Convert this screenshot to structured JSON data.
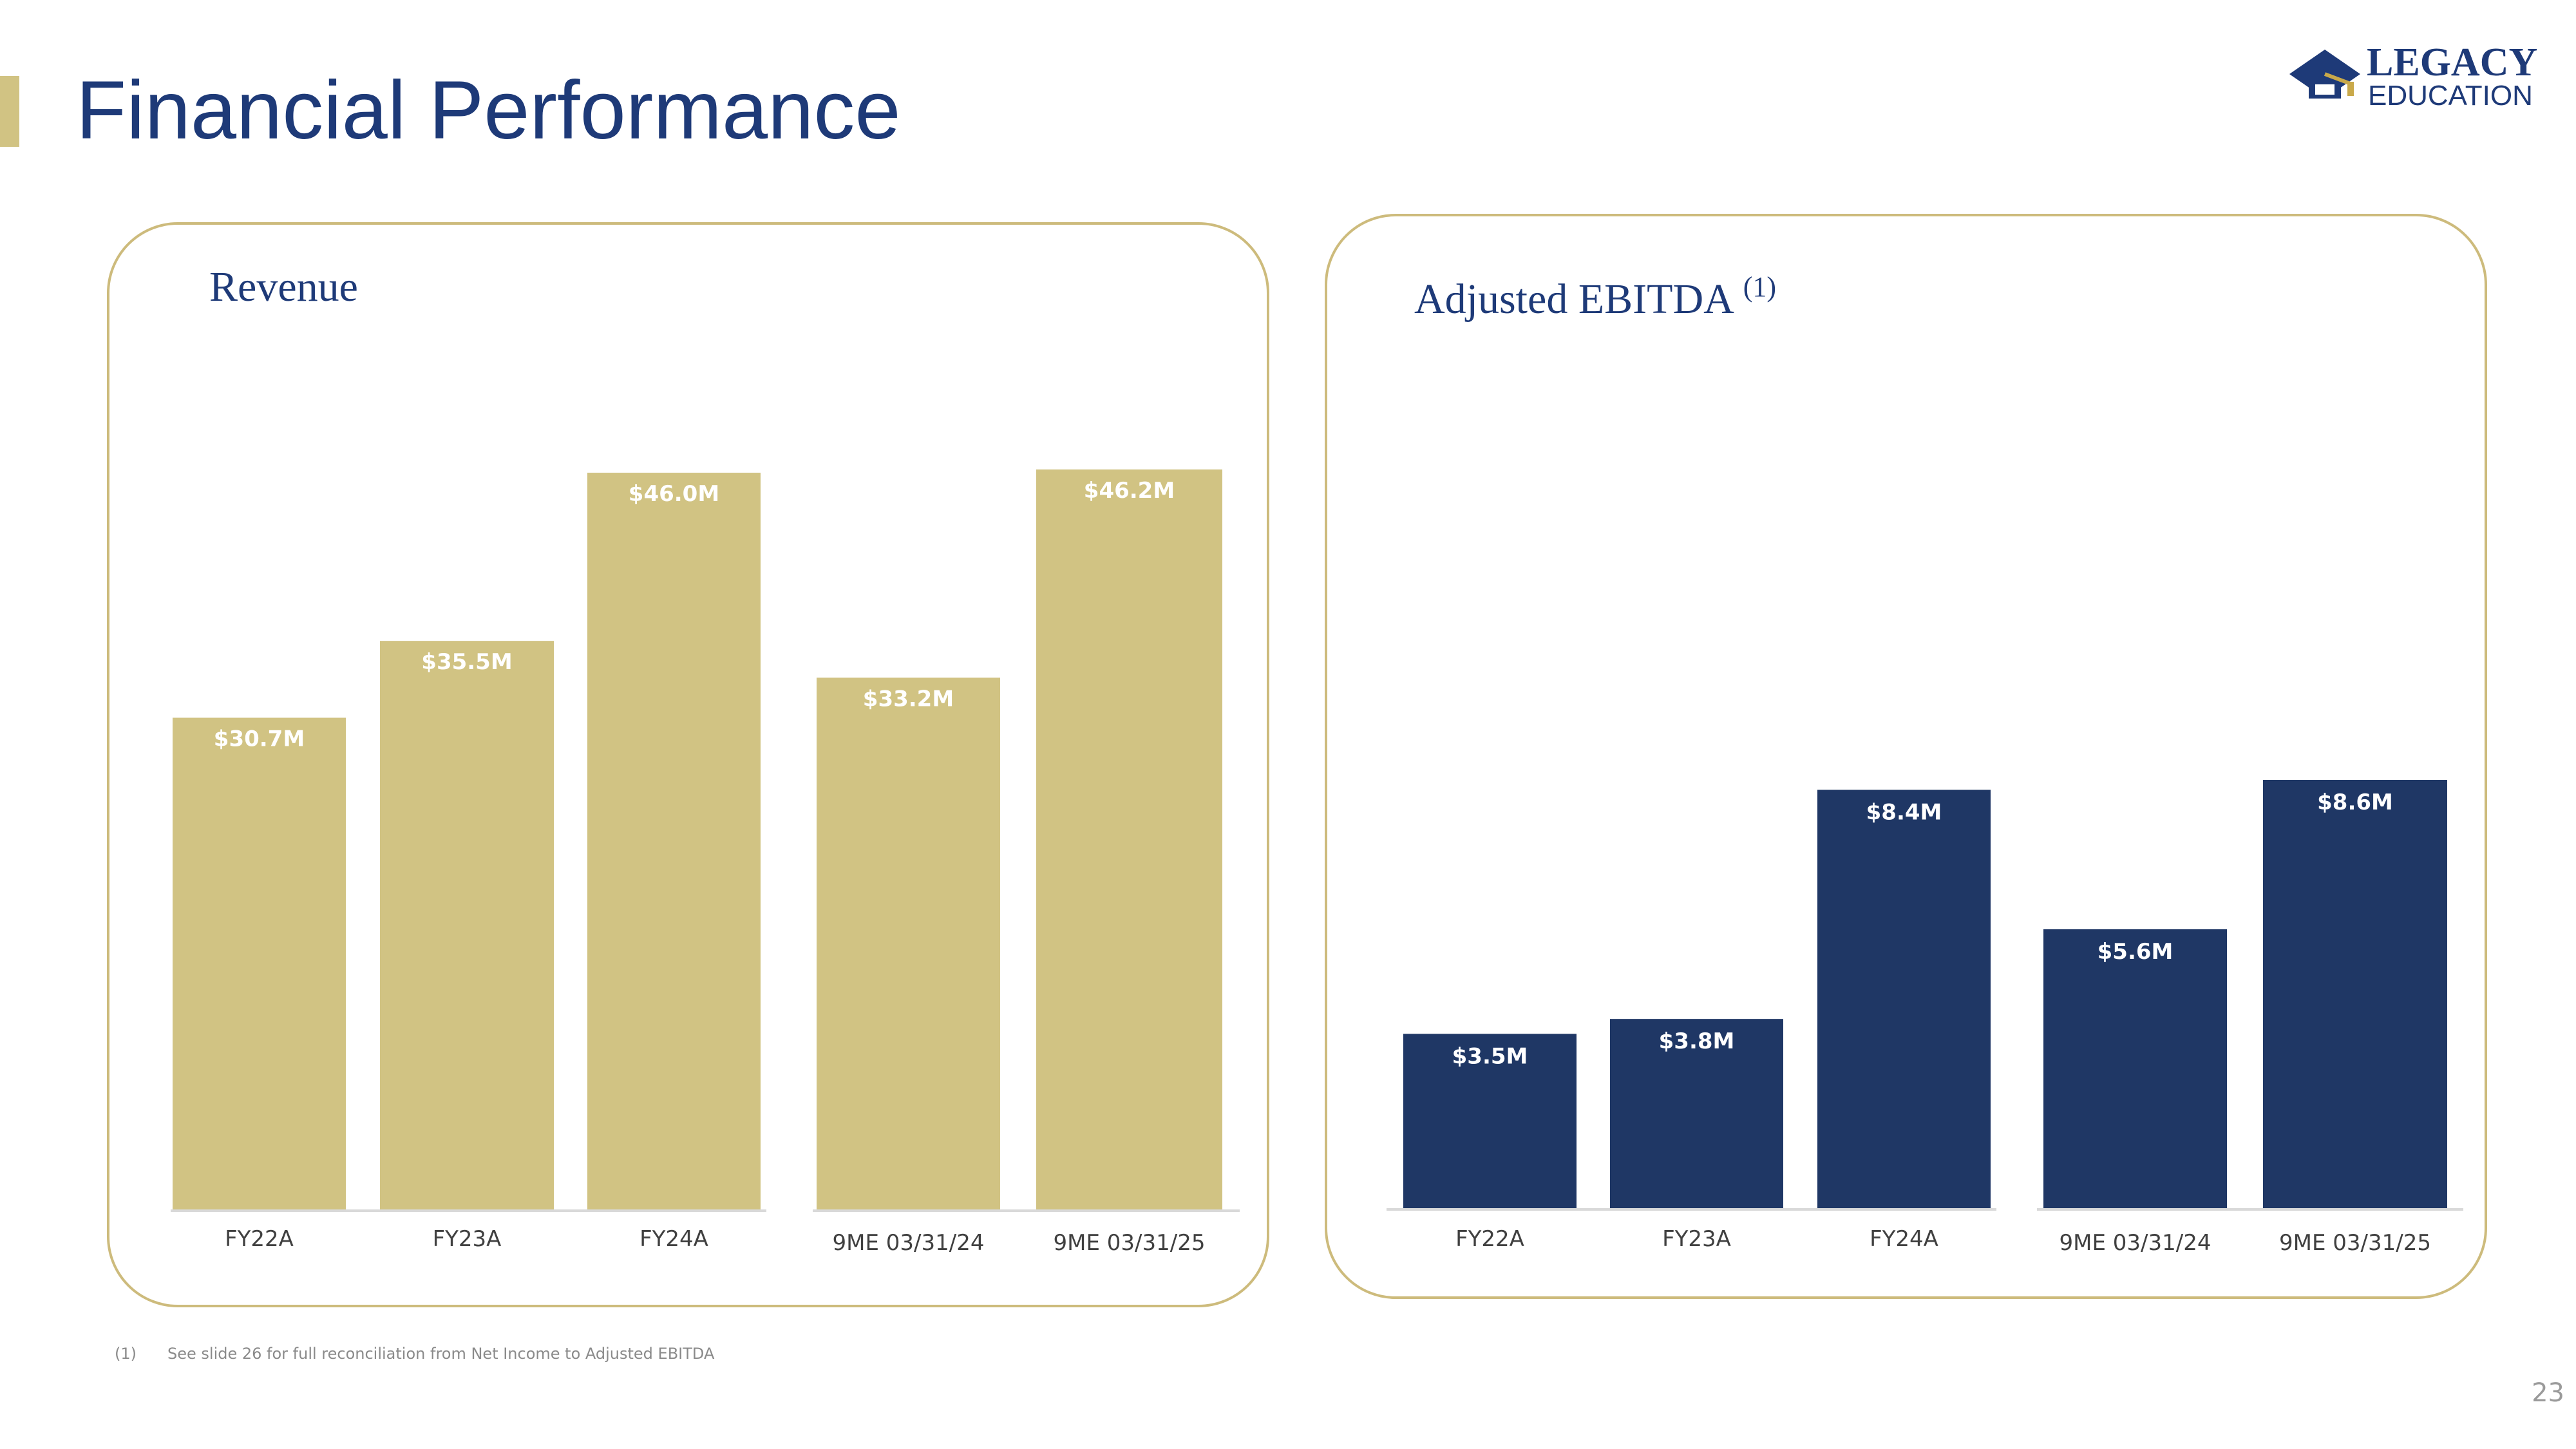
{
  "page": {
    "title": "Financial Performance",
    "page_number": "23",
    "footnote": {
      "marker": "(1)",
      "text": "See slide 26 for full reconciliation from Net Income to Adjusted EBITDA"
    }
  },
  "logo": {
    "line1": "LEGACY",
    "line2": "EDUCATION"
  },
  "colors": {
    "navy": "#1e3a78",
    "gold": "#d1c383",
    "bar_navy": "#1f3765",
    "panel_border": "#cdbb7c"
  },
  "chart_data": [
    {
      "type": "bar",
      "title": "Revenue",
      "categories": [
        "FY22A",
        "FY23A",
        "FY24A",
        "9ME 03/31/24",
        "9ME 03/31/25"
      ],
      "values": [
        30.7,
        35.5,
        46.0,
        33.2,
        46.2
      ],
      "data_labels": [
        "$30.7M",
        "$35.5M",
        "$46.0M",
        "$33.2M",
        "$46.2M"
      ],
      "ylim": [
        0,
        50
      ],
      "xlabel": "",
      "ylabel": "",
      "grid": false
    },
    {
      "type": "bar",
      "title": "Adjusted EBITDA",
      "title_footnote": "(1)",
      "categories": [
        "FY22A",
        "FY23A",
        "FY24A",
        "9ME 03/31/24",
        "9ME 03/31/25"
      ],
      "values": [
        3.5,
        3.8,
        8.4,
        5.6,
        8.6
      ],
      "data_labels": [
        "$3.5M",
        "$3.8M",
        "$8.4M",
        "$5.6M",
        "$8.6M"
      ],
      "ylim": [
        0,
        10
      ],
      "xlabel": "",
      "ylabel": "",
      "grid": false
    }
  ]
}
